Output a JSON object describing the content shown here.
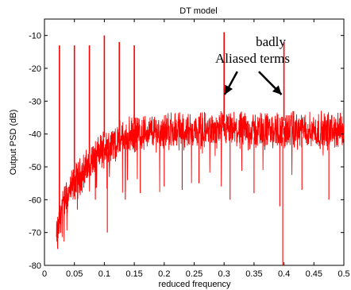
{
  "chart_data": {
    "type": "line",
    "title": "DT model",
    "xlabel": "reduced frequency",
    "ylabel": "Output PSD (dB)",
    "xlim": [
      0,
      0.5
    ],
    "ylim": [
      -80,
      -5
    ],
    "xticks": [
      0,
      0.05,
      0.1,
      0.15,
      0.2,
      0.25,
      0.3,
      0.35,
      0.4,
      0.45,
      0.5
    ],
    "xtick_labels": [
      "0",
      "0.05",
      "0.1",
      "0.15",
      "0.2",
      "0.25",
      "0.3",
      "0.35",
      "0.4",
      "0.45",
      "0.5"
    ],
    "yticks": [
      -80,
      -70,
      -60,
      -50,
      -40,
      -30,
      -20,
      -10
    ],
    "ytick_labels": [
      "-80",
      "-70",
      "-60",
      "-50",
      "-40",
      "-30",
      "-20",
      "-10"
    ],
    "grid": false,
    "series": [
      {
        "color": "#ff0000",
        "noise_envelope": {
          "x": [
            0.02,
            0.03,
            0.05,
            0.08,
            0.1,
            0.15,
            0.2,
            0.3,
            0.4,
            0.5
          ],
          "y": [
            -72,
            -62,
            -55,
            -48,
            -44,
            -40,
            -39,
            -39,
            -39,
            -39
          ]
        },
        "spikes": [
          {
            "x": 0.025,
            "y": -13
          },
          {
            "x": 0.05,
            "y": -13
          },
          {
            "x": 0.075,
            "y": -13
          },
          {
            "x": 0.1,
            "y": -10
          },
          {
            "x": 0.125,
            "y": -12
          },
          {
            "x": 0.15,
            "y": -13
          },
          {
            "x": 0.3,
            "y": -9
          },
          {
            "x": 0.4,
            "y": -12
          }
        ],
        "dips": [
          {
            "x": 0.022,
            "y": -75
          },
          {
            "x": 0.055,
            "y": -63
          },
          {
            "x": 0.085,
            "y": -60
          },
          {
            "x": 0.105,
            "y": -70
          },
          {
            "x": 0.135,
            "y": -60
          },
          {
            "x": 0.16,
            "y": -58
          },
          {
            "x": 0.2,
            "y": -56
          },
          {
            "x": 0.23,
            "y": -57
          },
          {
            "x": 0.258,
            "y": -55
          },
          {
            "x": 0.31,
            "y": -60
          },
          {
            "x": 0.35,
            "y": -58
          },
          {
            "x": 0.393,
            "y": -62
          },
          {
            "x": 0.398,
            "y": -80
          },
          {
            "x": 0.43,
            "y": -57
          },
          {
            "x": 0.475,
            "y": -60
          }
        ]
      }
    ],
    "annotation": {
      "lines": [
        "badly",
        "Aliased terms"
      ],
      "arrows": [
        {
          "from_x": 0.322,
          "from_y": -21,
          "to_x": 0.301,
          "to_y": -28
        },
        {
          "from_x": 0.358,
          "from_y": -21,
          "to_x": 0.396,
          "to_y": -28
        }
      ]
    }
  }
}
